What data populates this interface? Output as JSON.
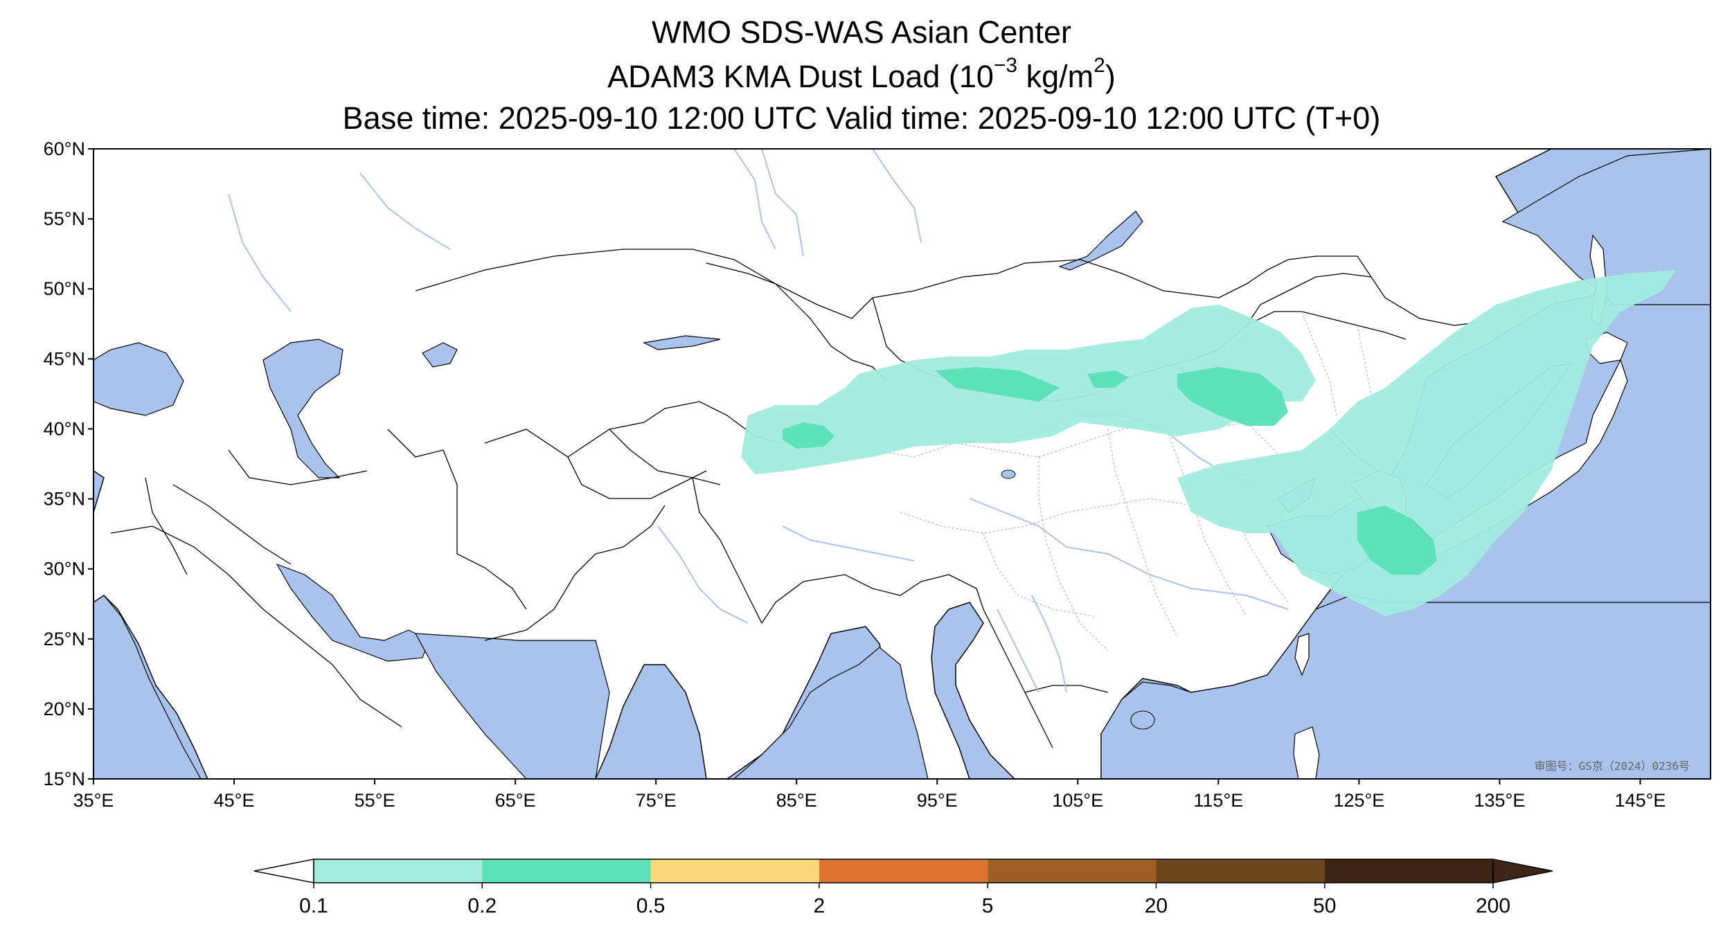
{
  "title": {
    "line1": "WMO SDS-WAS Asian Center",
    "line2_prefix": "ADAM3 KMA Dust Load (10",
    "line2_exp": "−3",
    "line2_mid": " kg/m",
    "line2_exp2": "2",
    "line2_suffix": ")",
    "line3": "Base time: 2025-09-10 12:00 UTC Valid time: 2025-09-10 12:00 UTC (T+0)"
  },
  "axes": {
    "lat_labels": [
      "60°N",
      "55°N",
      "50°N",
      "45°N",
      "40°N",
      "35°N",
      "30°N",
      "25°N",
      "20°N",
      "15°N"
    ],
    "lon_labels": [
      "35°E",
      "45°E",
      "55°E",
      "65°E",
      "75°E",
      "85°E",
      "95°E",
      "105°E",
      "115°E",
      "125°E",
      "135°E",
      "145°E"
    ],
    "lon_range": [
      35,
      150
    ],
    "lat_range": [
      15,
      60
    ]
  },
  "colorbar": {
    "labels": [
      "0.1",
      "0.2",
      "0.5",
      "2",
      "5",
      "20",
      "50",
      "200"
    ],
    "colors": [
      "#a1ebdf",
      "#5de2b9",
      "#fbd976",
      "#db742e",
      "#9e5e24",
      "#6d451f",
      "#3d2614"
    ],
    "extend": "both"
  },
  "colors": {
    "ocean": "#a9c3ec",
    "land": "#ffffff",
    "river": "#a9c3ec",
    "dust_low": "#a1ebdf",
    "dust_mid": "#5de2b9"
  },
  "watermark": "审图号：GS京（2024）0236号"
}
